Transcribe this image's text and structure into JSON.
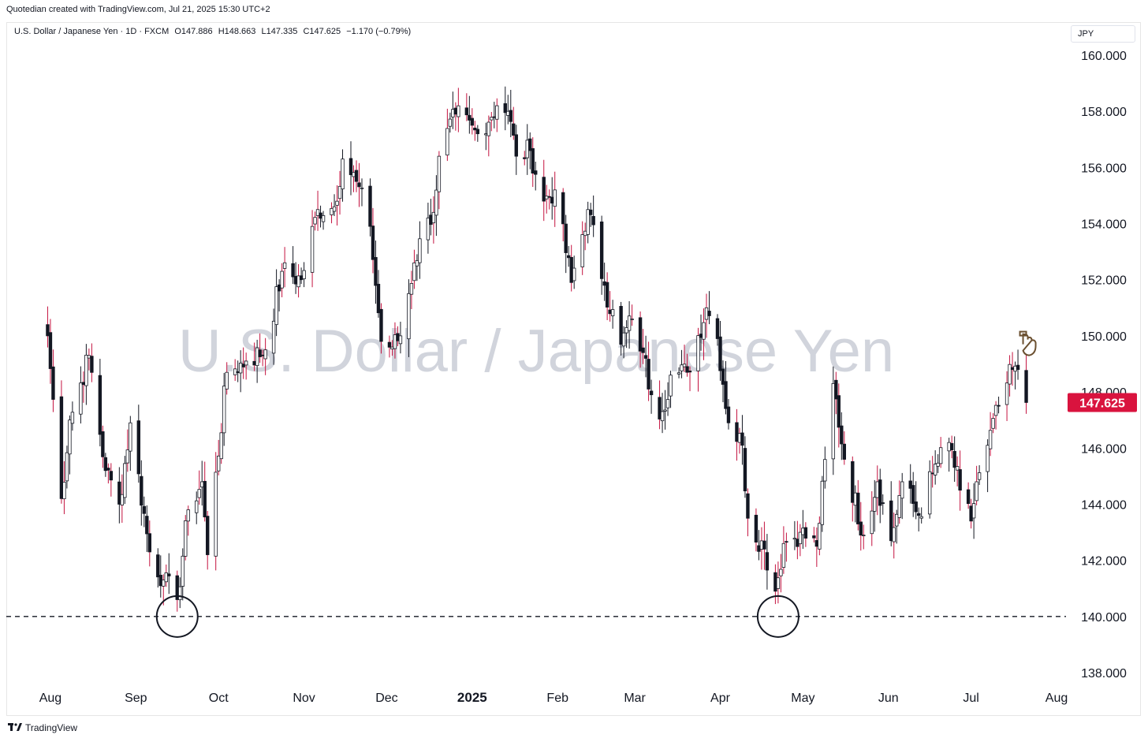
{
  "header": {
    "attribution": "Quotedian created with TradingView.com, Jul 21, 2025 15:30 UTC+2"
  },
  "legend": {
    "symbol": "U.S. Dollar / Japanese Yen · 1D · FXCM",
    "open": "O147.886",
    "high": "H148.663",
    "low": "L147.335",
    "close": "C147.625",
    "change": "−1.170 (−0.79%)"
  },
  "currency_label": "JPY",
  "watermark": "U.S. Dollar / Japanese Yen",
  "footer": {
    "brand": "TradingView"
  },
  "colors": {
    "up": "#ffffff",
    "down": "#131722",
    "wick": "#131722",
    "accent_wick": "#c4123f",
    "last_price_bg": "#d9133e",
    "watermark": "#d1d4dc"
  },
  "chart_data": {
    "type": "candlestick",
    "title": "U.S. Dollar / Japanese Yen",
    "ylim": [
      137.1,
      161.3
    ],
    "y_ticks": [
      "160.000",
      "158.000",
      "156.000",
      "154.000",
      "152.000",
      "150.000",
      "148.000",
      "146.000",
      "144.000",
      "142.000",
      "140.000",
      "138.000"
    ],
    "x_ticks": [
      {
        "label": "Aug",
        "date": "2024-08-01"
      },
      {
        "label": "Sep",
        "date": "2024-09-01"
      },
      {
        "label": "Oct",
        "date": "2024-10-01"
      },
      {
        "label": "Nov",
        "date": "2024-11-01"
      },
      {
        "label": "Dec",
        "date": "2024-12-01"
      },
      {
        "label": "2025",
        "date": "2025-01-01"
      },
      {
        "label": "Feb",
        "date": "2025-02-01"
      },
      {
        "label": "Mar",
        "date": "2025-03-01"
      },
      {
        "label": "Apr",
        "date": "2025-04-01"
      },
      {
        "label": "May",
        "date": "2025-05-01"
      },
      {
        "label": "Jun",
        "date": "2025-06-01"
      },
      {
        "label": "Jul",
        "date": "2025-07-01"
      },
      {
        "label": "Aug",
        "date": "2025-08-01"
      }
    ],
    "last_price": "147.625",
    "support_level": 140.0,
    "annotations": [
      {
        "type": "circle",
        "date": "2024-09-16",
        "price": 140.0
      },
      {
        "type": "circle",
        "date": "2025-04-22",
        "price": 140.0
      },
      {
        "type": "pointing-hand",
        "date": "2025-07-21",
        "price": 149.7
      }
    ],
    "anchors": [
      {
        "date": "2024-07-31",
        "close": 150.0
      },
      {
        "date": "2024-08-05",
        "close": 144.2
      },
      {
        "date": "2024-08-08",
        "close": 147.0
      },
      {
        "date": "2024-08-15",
        "close": 149.3
      },
      {
        "date": "2024-08-21",
        "close": 145.2
      },
      {
        "date": "2024-08-26",
        "close": 144.0
      },
      {
        "date": "2024-08-30",
        "close": 146.9
      },
      {
        "date": "2024-09-06",
        "close": 142.3
      },
      {
        "date": "2024-09-11",
        "close": 141.3
      },
      {
        "date": "2024-09-16",
        "close": 140.6
      },
      {
        "date": "2024-09-20",
        "close": 143.8
      },
      {
        "date": "2024-09-25",
        "close": 144.8
      },
      {
        "date": "2024-09-27",
        "close": 142.2
      },
      {
        "date": "2024-10-04",
        "close": 148.7
      },
      {
        "date": "2024-10-11",
        "close": 149.1
      },
      {
        "date": "2024-10-18",
        "close": 149.5
      },
      {
        "date": "2024-10-24",
        "close": 152.3
      },
      {
        "date": "2024-10-31",
        "close": 152.0
      },
      {
        "date": "2024-11-06",
        "close": 154.5
      },
      {
        "date": "2024-11-12",
        "close": 154.6
      },
      {
        "date": "2024-11-15",
        "close": 156.3
      },
      {
        "date": "2024-11-20",
        "close": 155.5
      },
      {
        "date": "2024-11-25",
        "close": 153.9
      },
      {
        "date": "2024-11-29",
        "close": 149.8
      },
      {
        "date": "2024-12-03",
        "close": 149.6
      },
      {
        "date": "2024-12-06",
        "close": 150.0
      },
      {
        "date": "2024-12-11",
        "close": 152.6
      },
      {
        "date": "2024-12-16",
        "close": 154.2
      },
      {
        "date": "2024-12-18",
        "close": 154.4
      },
      {
        "date": "2024-12-20",
        "close": 156.4
      },
      {
        "date": "2024-12-26",
        "close": 157.9
      },
      {
        "date": "2025-01-03",
        "close": 157.2
      },
      {
        "date": "2025-01-10",
        "close": 158.2
      },
      {
        "date": "2025-01-14",
        "close": 158.0
      },
      {
        "date": "2025-01-17",
        "close": 156.4
      },
      {
        "date": "2025-01-22",
        "close": 156.6
      },
      {
        "date": "2025-01-27",
        "close": 154.8
      },
      {
        "date": "2025-01-31",
        "close": 155.2
      },
      {
        "date": "2025-02-06",
        "close": 151.9
      },
      {
        "date": "2025-02-12",
        "close": 154.5
      },
      {
        "date": "2025-02-18",
        "close": 151.8
      },
      {
        "date": "2025-02-24",
        "close": 149.7
      },
      {
        "date": "2025-02-28",
        "close": 150.6
      },
      {
        "date": "2025-03-04",
        "close": 149.4
      },
      {
        "date": "2025-03-07",
        "close": 147.9
      },
      {
        "date": "2025-03-11",
        "close": 147.3
      },
      {
        "date": "2025-03-14",
        "close": 148.6
      },
      {
        "date": "2025-03-20",
        "close": 148.7
      },
      {
        "date": "2025-03-27",
        "close": 151.0
      },
      {
        "date": "2025-03-31",
        "close": 149.9
      },
      {
        "date": "2025-04-04",
        "close": 146.9
      },
      {
        "date": "2025-04-09",
        "close": 146.1
      },
      {
        "date": "2025-04-11",
        "close": 143.5
      },
      {
        "date": "2025-04-17",
        "close": 142.4
      },
      {
        "date": "2025-04-21",
        "close": 140.9
      },
      {
        "date": "2025-04-24",
        "close": 142.6
      },
      {
        "date": "2025-04-30",
        "close": 143.0
      },
      {
        "date": "2025-05-06",
        "close": 142.5
      },
      {
        "date": "2025-05-12",
        "close": 148.3
      },
      {
        "date": "2025-05-16",
        "close": 145.6
      },
      {
        "date": "2025-05-23",
        "close": 142.9
      },
      {
        "date": "2025-05-28",
        "close": 144.8
      },
      {
        "date": "2025-06-02",
        "close": 142.7
      },
      {
        "date": "2025-06-06",
        "close": 144.8
      },
      {
        "date": "2025-06-12",
        "close": 143.6
      },
      {
        "date": "2025-06-17",
        "close": 145.1
      },
      {
        "date": "2025-06-23",
        "close": 146.2
      },
      {
        "date": "2025-06-27",
        "close": 144.5
      },
      {
        "date": "2025-07-01",
        "close": 143.4
      },
      {
        "date": "2025-07-03",
        "close": 144.8
      },
      {
        "date": "2025-07-07",
        "close": 146.1
      },
      {
        "date": "2025-07-11",
        "close": 147.5
      },
      {
        "date": "2025-07-16",
        "close": 148.8
      },
      {
        "date": "2025-07-18",
        "close": 148.8
      },
      {
        "date": "2025-07-21",
        "close": 147.625
      }
    ]
  }
}
